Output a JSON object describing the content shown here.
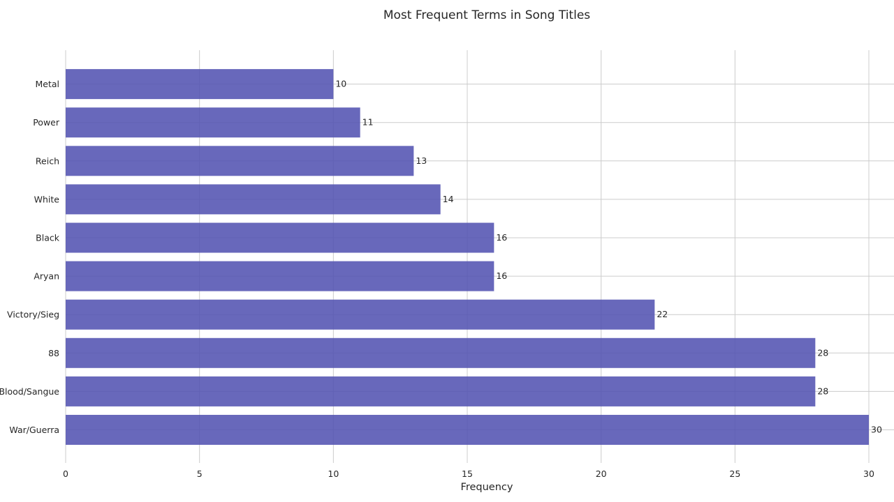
{
  "chart_data": {
    "type": "bar",
    "orientation": "horizontal",
    "title": "Most Frequent Terms in Song Titles",
    "xlabel": "Frequency",
    "ylabel": "",
    "categories": [
      "War/Guerra",
      "Blood/Sangue",
      "88",
      "Victory/Sieg",
      "Aryan",
      "Black",
      "White",
      "Reich",
      "Power",
      "Metal"
    ],
    "values": [
      30,
      28,
      28,
      22,
      16,
      16,
      14,
      13,
      11,
      10
    ],
    "xlim": [
      0,
      30
    ],
    "xticks": [
      0,
      5,
      10,
      15,
      20,
      25,
      30
    ],
    "grid": true,
    "bar_color": "#5151b1",
    "show_data_labels": true
  }
}
